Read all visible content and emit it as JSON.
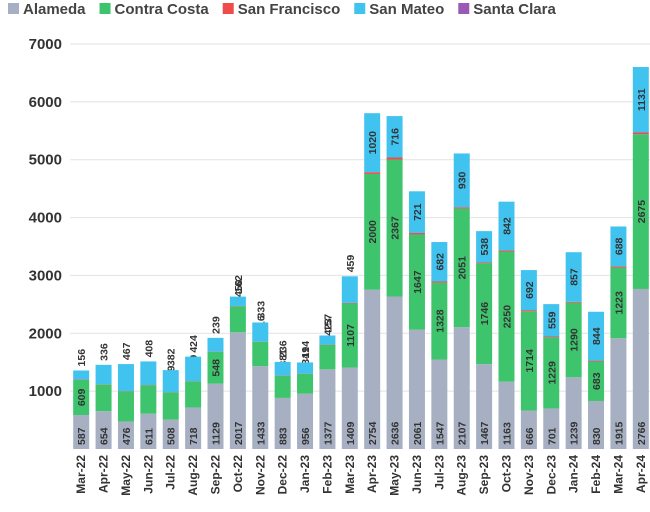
{
  "chart_data": {
    "type": "stacked_bar",
    "categories": [
      "Mar-22",
      "Apr-22",
      "May-22",
      "Jun-22",
      "Jul-22",
      "Aug-22",
      "Sep-22",
      "Oct-22",
      "Nov-22",
      "Dec-22",
      "Jan-23",
      "Feb-23",
      "Mar-23",
      "Apr-23",
      "May-23",
      "Jun-23",
      "Jul-23",
      "Aug-23",
      "Sep-23",
      "Oct-23",
      "Nov-23",
      "Dec-23",
      "Jan-24",
      "Feb-24",
      "Mar-24",
      "Apr-24"
    ],
    "series": [
      {
        "name": "Alameda",
        "color": "#a7b0c2",
        "values": [
          587,
          654,
          476,
          611,
          508,
          718,
          1129,
          2017,
          1433,
          883,
          956,
          1377,
          1409,
          2754,
          2636,
          2061,
          1547,
          2107,
          1467,
          1163,
          666,
          701,
          1239,
          830,
          1915,
          2766
        ],
        "value_labels": [
          "587",
          "654",
          "476",
          "611",
          "508",
          "718",
          "1129",
          "2017",
          "1433",
          "883",
          "956",
          "1377",
          "1409",
          "2754",
          "2636",
          "2061",
          "1547",
          "2107",
          "1467",
          "1163",
          "666",
          "701",
          "1239",
          "830",
          "1915",
          "2766"
        ]
      },
      {
        "name": "Contra Costa",
        "color": "#3ec46d",
        "values": [
          609,
          460,
          520,
          490,
          469,
          449,
          548,
          450,
          416,
          381,
          341,
          423,
          1107,
          2000,
          2367,
          1647,
          1328,
          2051,
          1746,
          2250,
          1714,
          1229,
          1290,
          683,
          1223,
          2675
        ],
        "value_labels": [
          "609",
          null,
          null,
          null,
          "469",
          "449",
          "548",
          "450",
          "416",
          "381",
          "341",
          "423",
          "1107",
          "2000",
          "2367",
          "1647",
          "1328",
          "2051",
          "1746",
          "2250",
          "1714",
          "1229",
          "1290",
          "683",
          "1223",
          "2675"
        ]
      },
      {
        "name": "San Francisco",
        "color": "#f04b4b",
        "values": [
          5,
          5,
          5,
          5,
          5,
          5,
          5,
          5,
          5,
          5,
          5,
          5,
          10,
          30,
          35,
          25,
          20,
          20,
          15,
          20,
          20,
          15,
          15,
          15,
          20,
          30
        ]
      },
      {
        "name": "San Mateo",
        "color": "#41c3ef",
        "values": [
          156,
          336,
          467,
          408,
          382,
          424,
          239,
          162,
          333,
          236,
          194,
          157,
          459,
          1020,
          716,
          721,
          682,
          930,
          538,
          842,
          692,
          559,
          857,
          844,
          688,
          1131
        ],
        "value_labels": [
          "156",
          "336",
          "467",
          "408",
          "382",
          "424",
          "239",
          "162",
          "333",
          "236",
          "194",
          "157",
          "459",
          "1020",
          "716",
          "721",
          "682",
          "930",
          "538",
          "842",
          "692",
          "559",
          "857",
          "844",
          "688",
          "1131"
        ]
      },
      {
        "name": "Santa Clara",
        "color": "#9b59b6",
        "values": [
          0,
          0,
          0,
          0,
          0,
          0,
          0,
          0,
          0,
          0,
          0,
          0,
          0,
          0,
          0,
          0,
          0,
          0,
          0,
          0,
          0,
          0,
          0,
          0,
          0,
          0
        ]
      }
    ],
    "ylim": [
      0,
      7000
    ],
    "yticks": [
      1000,
      2000,
      3000,
      4000,
      5000,
      6000,
      7000
    ],
    "grid": true
  }
}
